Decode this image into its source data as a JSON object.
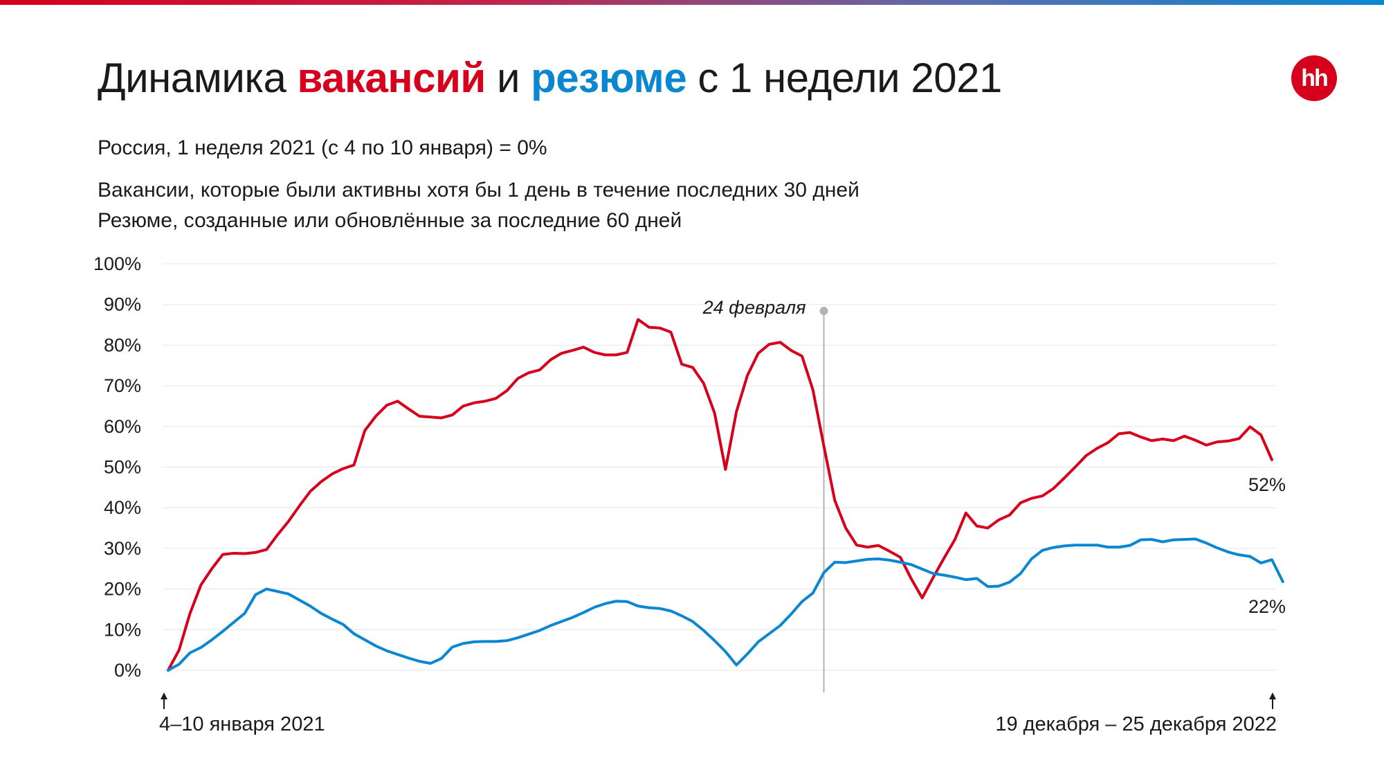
{
  "header": {
    "title_prefix": "Динамика ",
    "title_vac": "вакансий",
    "title_mid": " и ",
    "title_res": "резюме",
    "title_suffix": " с 1 недели 2021",
    "logo_text": "hh"
  },
  "subtitle": {
    "baseline": "Россия, 1 неделя 2021 (с 4 по 10 января) = 0%",
    "note_vacancies": "Вакансии, которые были активны хотя бы 1 день в течение последних 30 дней",
    "note_resumes": "Резюме, созданные или обновлённые за последние 60 дней"
  },
  "colors": {
    "vacancies": "#d6001c",
    "resumes": "#0a87d0",
    "grid": "#e6e6e6",
    "marker": "#b3b3b3"
  },
  "chart_data": {
    "type": "line",
    "ylim": [
      0,
      100
    ],
    "ytick_labels": [
      "0%",
      "10%",
      "20%",
      "30%",
      "40%",
      "50%",
      "60%",
      "70%",
      "80%",
      "90%",
      "100%"
    ],
    "x_start_label": "4–10 января 2021",
    "x_end_label": "19 декабря – 25 декабря 2022",
    "annotation": {
      "label": "24 февраля",
      "week_index": 60
    },
    "grid": true,
    "series": [
      {
        "key": "vacancies",
        "end_label": "52%",
        "values": [
          0,
          5,
          14,
          21,
          25,
          28.5,
          28.8,
          28.7,
          29,
          29.7,
          33.3,
          36.6,
          40.4,
          44,
          46.4,
          48.3,
          49.6,
          50.5,
          59,
          62.5,
          65.2,
          66.2,
          64.3,
          62.5,
          62.3,
          62.1,
          62.8,
          65,
          65.8,
          66.2,
          66.9,
          68.8,
          71.8,
          73.2,
          73.9,
          76.4,
          78,
          78.7,
          79.5,
          78.2,
          77.6,
          77.6,
          78.2,
          86.3,
          84.4,
          84.2,
          83.2,
          75.3,
          74.5,
          70.6,
          63.3,
          49.4,
          63.6,
          72.5,
          78,
          80.2,
          80.7,
          78.7,
          77.3,
          69,
          55.2,
          41.8,
          35,
          30.8,
          30.3,
          30.7,
          29.3,
          27.8,
          22.5,
          17.8,
          22.8,
          27.6,
          32.2,
          38.7,
          35.5,
          35,
          37,
          38.2,
          41.2,
          42.3,
          42.9,
          44.7,
          47.3,
          50,
          52.8,
          54.6,
          56,
          58.2,
          58.5,
          57.4,
          56.5,
          56.9,
          56.5,
          57.6,
          56.6,
          55.4,
          56.2,
          56.4,
          57,
          59.9,
          57.9,
          51.8
        ]
      },
      {
        "key": "resumes",
        "end_label": "22%",
        "values": [
          0,
          1.5,
          4.3,
          5.6,
          7.5,
          9.6,
          11.8,
          14,
          18.6,
          20,
          19.4,
          18.8,
          17.3,
          15.8,
          14,
          12.6,
          11.3,
          9,
          7.5,
          6,
          4.8,
          3.9,
          3,
          2.2,
          1.7,
          2.9,
          5.7,
          6.6,
          7,
          7.1,
          7.1,
          7.3,
          8,
          8.9,
          9.8,
          11,
          12,
          13,
          14.2,
          15.5,
          16.4,
          17,
          16.9,
          15.8,
          15.4,
          15.2,
          14.6,
          13.4,
          12,
          9.8,
          7.3,
          4.6,
          1.3,
          4,
          7,
          9,
          11,
          13.8,
          16.9,
          19,
          24,
          26.6,
          26.5,
          26.9,
          27.3,
          27.4,
          27.1,
          26.6,
          26,
          24.9,
          23.8,
          23.4,
          22.9,
          22.3,
          22.6,
          20.6,
          20.7,
          21.7,
          23.8,
          27.4,
          29.5,
          30.2,
          30.6,
          30.8,
          30.8,
          30.8,
          30.3,
          30.3,
          30.7,
          32.1,
          32.2,
          31.6,
          32.1,
          32.2,
          32.3,
          31.3,
          30.1,
          29.1,
          28.4,
          28,
          26.4,
          27.2,
          21.8
        ]
      }
    ]
  }
}
